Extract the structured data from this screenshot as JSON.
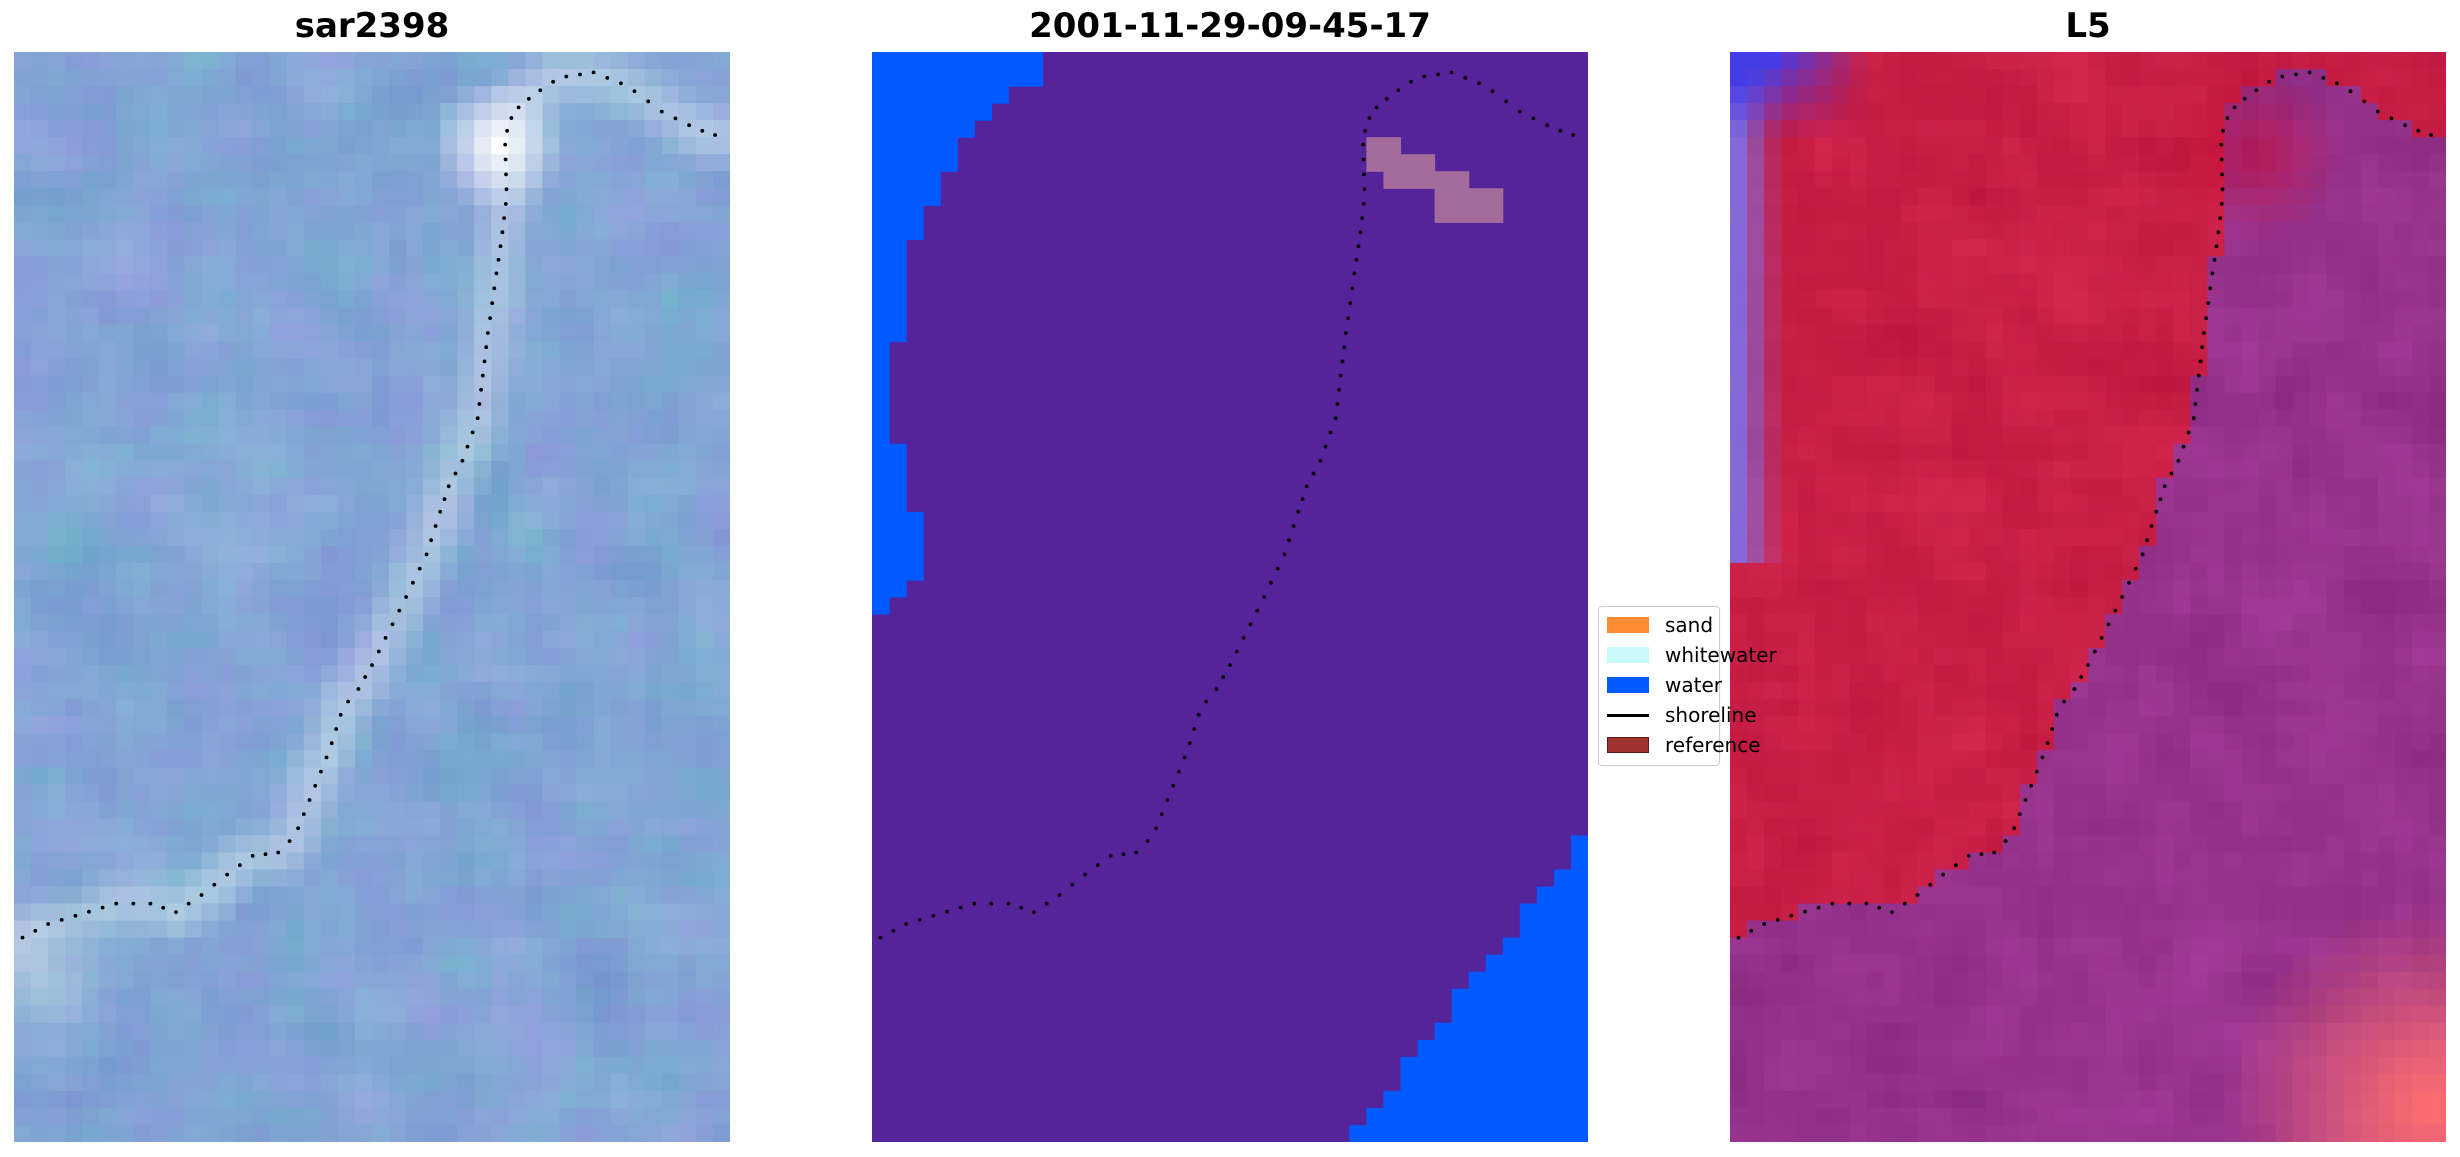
{
  "panels": [
    {
      "title": "sar2398",
      "kind": "rgb-image"
    },
    {
      "title": "2001-11-29-09-45-17",
      "kind": "classification"
    },
    {
      "title": "L5",
      "kind": "index-image"
    }
  ],
  "colors": {
    "sand": "#ff8c32",
    "whitewater": "#c8fafa",
    "water": "#005aff",
    "other_land": "#55239a",
    "reference_overlay": "#a36c9a",
    "shoreline": "#000000",
    "reference_swatch": "#a03232"
  },
  "legend": {
    "items": [
      {
        "label": "sand",
        "type": "patch",
        "color": "#ff8c32"
      },
      {
        "label": "whitewater",
        "type": "patch",
        "color": "#c8fafa"
      },
      {
        "label": "water",
        "type": "patch",
        "color": "#005aff"
      },
      {
        "label": "shoreline",
        "type": "line",
        "color": "#000000"
      },
      {
        "label": "reference",
        "type": "patch",
        "color": "#a03232"
      }
    ]
  },
  "chart_data": {
    "type": "heatmap",
    "description_of_data": "three raster panels sharing one dotted shoreline trace",
    "grid_shape": [
      64,
      42
    ],
    "shoreline": {
      "x": [
        0.5,
        2,
        4,
        6,
        8,
        9.5,
        11,
        12.5,
        14,
        15.5,
        16.5,
        17.5,
        18.5,
        19.3,
        20.2,
        21,
        22,
        23,
        24.2,
        25,
        25.5,
        26.3,
        27.2,
        27.5,
        27.8,
        28.3,
        28.6,
        28.9,
        28.8,
        29.3,
        30.5,
        32,
        34,
        36,
        38,
        40,
        41.5
      ],
      "y": [
        52,
        51.2,
        50.6,
        50,
        50,
        50.5,
        49.5,
        48.3,
        47.2,
        47,
        46,
        43.5,
        41,
        38.5,
        37.4,
        36,
        34,
        32,
        29.5,
        27,
        25.5,
        24,
        21.5,
        19,
        16.5,
        13,
        11,
        8.5,
        5,
        3.5,
        2.5,
        1.5,
        1.2,
        2,
        3.5,
        4.5,
        5
      ]
    }
  }
}
